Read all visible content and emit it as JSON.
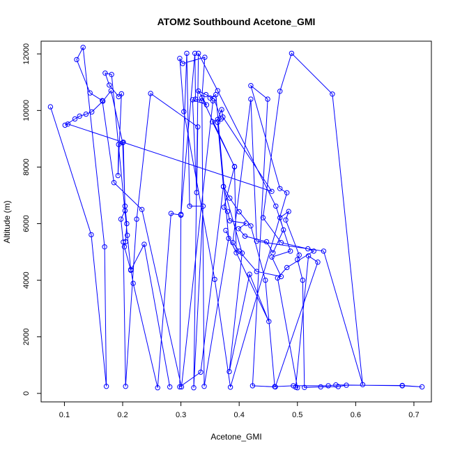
{
  "chart_data": {
    "type": "line",
    "title": "ATOM2 Southbound Acetone_GMI",
    "xlabel": "Acetone_GMI",
    "ylabel": "Altitude (m)",
    "xlim": [
      0.06,
      0.73
    ],
    "ylim": [
      -300,
      12450
    ],
    "xticks": [
      0.1,
      0.2,
      0.3,
      0.4,
      0.5,
      0.6,
      0.7
    ],
    "xtick_labels": [
      "0.1",
      "0.2",
      "0.3",
      "0.4",
      "0.5",
      "0.6",
      "0.7"
    ],
    "yticks": [
      0,
      2000,
      4000,
      6000,
      8000,
      10000,
      12000
    ],
    "ytick_labels": [
      "0",
      "2000",
      "4000",
      "6000",
      "8000",
      "10000",
      "12000"
    ],
    "series": [
      {
        "color": "#0000ff",
        "marker": "open-circle",
        "points": [
          [
            0.076,
            10130
          ],
          [
            0.146,
            5610
          ],
          [
            0.172,
            250
          ],
          [
            0.169,
            5180
          ],
          [
            0.132,
            12230
          ],
          [
            0.121,
            11800
          ],
          [
            0.144,
            10620
          ],
          [
            0.165,
            10350
          ],
          [
            0.185,
            7450
          ],
          [
            0.233,
            6500
          ],
          [
            0.301,
            230
          ],
          [
            0.355,
            10340
          ],
          [
            0.35,
            10440
          ],
          [
            0.36,
            10560
          ],
          [
            0.382,
            5480
          ],
          [
            0.34,
            250
          ],
          [
            0.336,
            10350
          ],
          [
            0.325,
            10400
          ],
          [
            0.324,
            12020
          ],
          [
            0.3,
            6330
          ],
          [
            0.31,
            12020
          ],
          [
            0.315,
            6620
          ],
          [
            0.338,
            6620
          ],
          [
            0.322,
            200
          ],
          [
            0.33,
            12020
          ],
          [
            0.363,
            10700
          ],
          [
            0.463,
            6620
          ],
          [
            0.488,
            5030
          ],
          [
            0.456,
            4820
          ],
          [
            0.472,
            4130
          ],
          [
            0.43,
            4310
          ],
          [
            0.4,
            5030
          ],
          [
            0.389,
            5330
          ],
          [
            0.42,
            10400
          ],
          [
            0.43,
            5380
          ],
          [
            0.545,
            5030
          ],
          [
            0.612,
            310
          ],
          [
            0.56,
            10580
          ],
          [
            0.49,
            12020
          ],
          [
            0.47,
            10680
          ],
          [
            0.441,
            6210
          ],
          [
            0.472,
            5330
          ],
          [
            0.518,
            5110
          ],
          [
            0.528,
            5030
          ],
          [
            0.482,
            4450
          ],
          [
            0.466,
            4080
          ],
          [
            0.5,
            200
          ],
          [
            0.497,
            220
          ],
          [
            0.519,
            4860
          ],
          [
            0.535,
            4640
          ],
          [
            0.462,
            230
          ],
          [
            0.423,
            270
          ],
          [
            0.449,
            10400
          ],
          [
            0.42,
            10880
          ],
          [
            0.47,
            7240
          ],
          [
            0.482,
            7090
          ],
          [
            0.385,
            220
          ],
          [
            0.358,
            4030
          ],
          [
            0.305,
            9960
          ],
          [
            0.298,
            11840
          ],
          [
            0.303,
            11660
          ],
          [
            0.341,
            11880
          ],
          [
            0.336,
            10450
          ],
          [
            0.392,
            8010
          ],
          [
            0.374,
            6580
          ],
          [
            0.38,
            6430
          ],
          [
            0.384,
            6100
          ],
          [
            0.412,
            6010
          ],
          [
            0.399,
            5820
          ],
          [
            0.41,
            5560
          ],
          [
            0.447,
            5360
          ],
          [
            0.458,
            4970
          ],
          [
            0.476,
            5780
          ],
          [
            0.47,
            6210
          ],
          [
            0.485,
            6430
          ],
          [
            0.48,
            6130
          ],
          [
            0.503,
            4890
          ],
          [
            0.5,
            4730
          ],
          [
            0.509,
            4000
          ],
          [
            0.512,
            210
          ],
          [
            0.54,
            230
          ],
          [
            0.57,
            240
          ],
          [
            0.584,
            290
          ],
          [
            0.68,
            280
          ],
          [
            0.714,
            230
          ],
          [
            0.68,
            270
          ],
          [
            0.566,
            300
          ],
          [
            0.553,
            270
          ],
          [
            0.493,
            270
          ],
          [
            0.461,
            240
          ],
          [
            0.445,
            4000
          ],
          [
            0.42,
            5920
          ],
          [
            0.4,
            6420
          ],
          [
            0.384,
            6900
          ],
          [
            0.373,
            7310
          ],
          [
            0.363,
            9580
          ],
          [
            0.369,
            9700
          ],
          [
            0.357,
            10410
          ],
          [
            0.343,
            10560
          ],
          [
            0.33,
            10690
          ],
          [
            0.344,
            10200
          ],
          [
            0.32,
            10380
          ],
          [
            0.327,
            7100
          ],
          [
            0.329,
            9420
          ],
          [
            0.248,
            10600
          ],
          [
            0.224,
            6160
          ],
          [
            0.205,
            250
          ],
          [
            0.201,
            5350
          ],
          [
            0.197,
            6160
          ],
          [
            0.204,
            6460
          ],
          [
            0.201,
            8880
          ],
          [
            0.193,
            8800
          ],
          [
            0.192,
            7700
          ],
          [
            0.198,
            10590
          ],
          [
            0.193,
            10490
          ],
          [
            0.177,
            10900
          ],
          [
            0.17,
            11320
          ],
          [
            0.181,
            11270
          ],
          [
            0.208,
            5590
          ],
          [
            0.214,
            4380
          ],
          [
            0.218,
            3890
          ],
          [
            0.26,
            200
          ],
          [
            0.283,
            6360
          ],
          [
            0.3,
            6300
          ],
          [
            0.298,
            230
          ],
          [
            0.334,
            750
          ],
          [
            0.373,
            7310
          ],
          [
            0.405,
            4960
          ],
          [
            0.383,
            770
          ],
          [
            0.418,
            4210
          ],
          [
            0.451,
            2540
          ],
          [
            0.377,
            5760
          ],
          [
            0.395,
            4970
          ],
          [
            0.392,
            8020
          ],
          [
            0.354,
            9600
          ],
          [
            0.363,
            9680
          ],
          [
            0.37,
            10030
          ],
          [
            0.372,
            9770
          ],
          [
            0.456,
            7140
          ],
          [
            0.106,
            9520
          ],
          [
            0.101,
            9480
          ],
          [
            0.118,
            9700
          ],
          [
            0.126,
            9800
          ],
          [
            0.137,
            9870
          ],
          [
            0.147,
            9950
          ],
          [
            0.166,
            10330
          ],
          [
            0.18,
            10700
          ],
          [
            0.2,
            8860
          ],
          [
            0.204,
            6620
          ],
          [
            0.207,
            6000
          ],
          [
            0.205,
            5360
          ],
          [
            0.203,
            5180
          ],
          [
            0.214,
            4350
          ],
          [
            0.237,
            5270
          ],
          [
            0.281,
            230
          ]
        ]
      }
    ]
  }
}
